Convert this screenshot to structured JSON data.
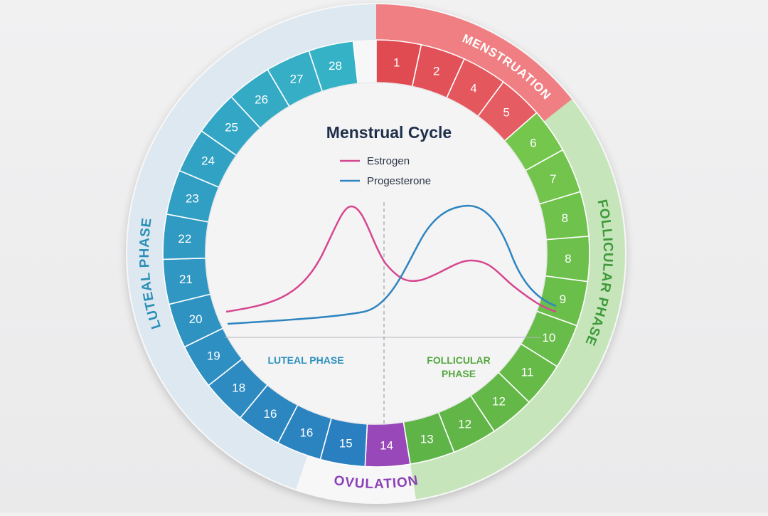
{
  "diagram": {
    "title": "Menstrual Cycle",
    "legend": [
      {
        "name": "Estrogen",
        "color": "#d6478f"
      },
      {
        "name": "Progesterone",
        "color": "#2f85c0"
      }
    ],
    "inner_labels": {
      "luteal": "LUTEAL PHASE",
      "follicular_line1": "FOLLICULAR",
      "follicular_line2": "PHASE"
    },
    "phases": [
      {
        "name": "MENSTRUATION",
        "color": "#e34b55"
      },
      {
        "name": "FOLLICULAR PHASE",
        "color": "#3d9a3a"
      },
      {
        "name": "OVULATION",
        "color": "#8a3fb5"
      },
      {
        "name": "LUTEAL PHASE",
        "color": "#2a8fb8"
      }
    ],
    "day_labels": [
      "1",
      "2",
      "4",
      "5",
      "6",
      "7",
      "8",
      "8",
      "9",
      "10",
      "11",
      "12",
      "12",
      "13",
      "14",
      "15",
      "16",
      "16",
      "18",
      "19",
      "20",
      "21",
      "22",
      "23",
      "24",
      "25",
      "26",
      "27",
      "28"
    ],
    "segment_colors": {
      "menstruation": "#e04b52",
      "follicular": "#68bf4a",
      "ovulation": "#9848b8",
      "luteal": "#2d9fc4"
    }
  }
}
